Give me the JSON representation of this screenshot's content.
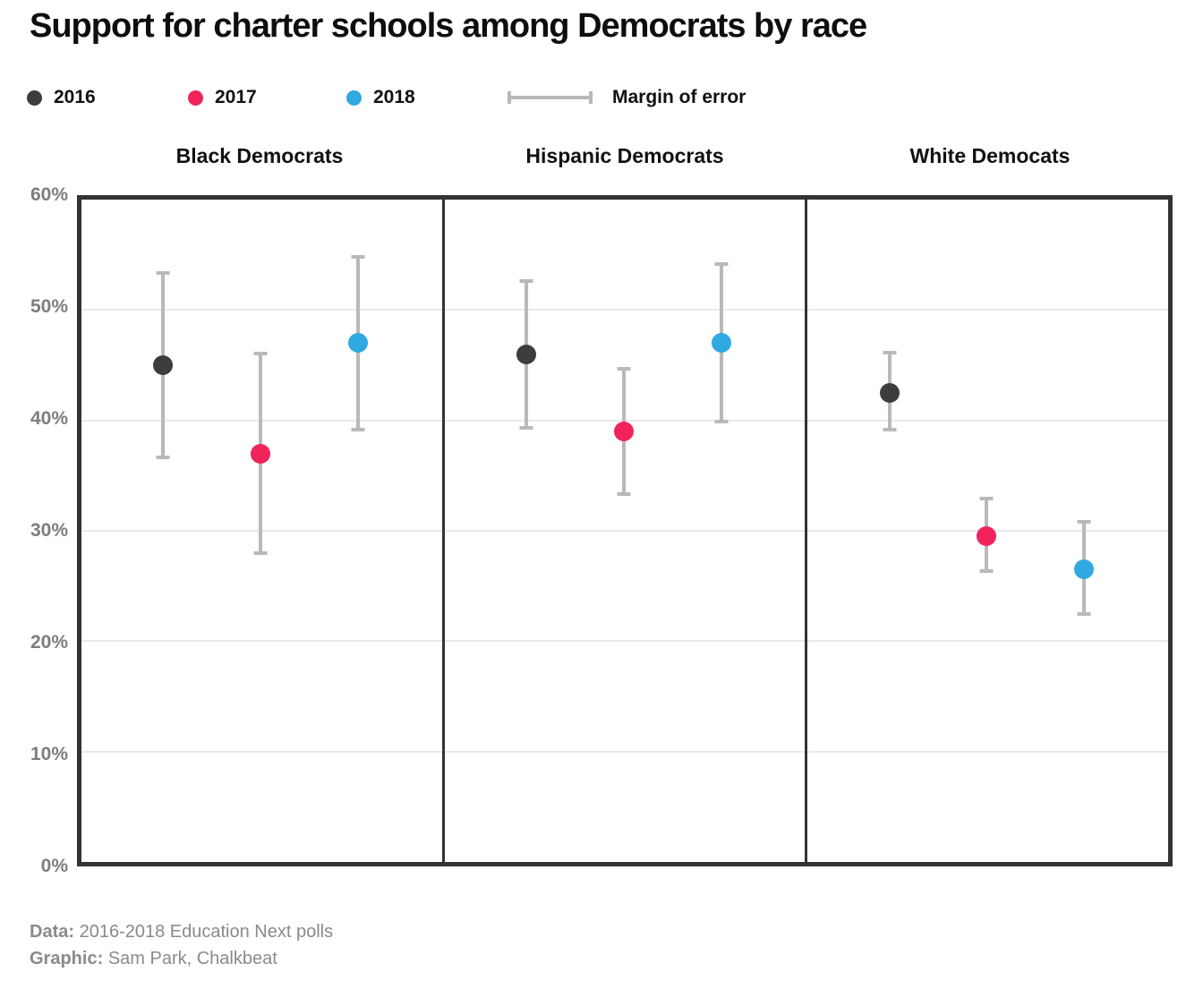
{
  "title": "Support for charter schools among Democrats by race",
  "legend": {
    "items": [
      {
        "label": "2016",
        "color": "#3d3d3d"
      },
      {
        "label": "2017",
        "color": "#f0235a"
      },
      {
        "label": "2018",
        "color": "#30a9e0"
      }
    ],
    "moe_label": "Margin of error"
  },
  "icons": {
    "legend_marker": "filled-circle",
    "moe_marker": "horizontal-error-bar-with-end-caps"
  },
  "colors": {
    "error_bar": "#b9b9b9",
    "gridline": "#e9e9e9",
    "plot_border": "#333333",
    "axis_text": "#7d7d7d",
    "footer_text": "#8a8a8a"
  },
  "chart_data": {
    "type": "scatter",
    "title": "Support for charter schools among Democrats by race",
    "xlabel": "",
    "ylabel": "",
    "ylim": [
      0,
      60
    ],
    "grid": "horizontal gridlines every 10%",
    "legend_position": "top",
    "yticks": [
      {
        "label": "60%",
        "value": 60
      },
      {
        "label": "50%",
        "value": 50
      },
      {
        "label": "40%",
        "value": 40
      },
      {
        "label": "30%",
        "value": 30
      },
      {
        "label": "20%",
        "value": 20
      },
      {
        "label": "10%",
        "value": 10
      },
      {
        "label": "0%",
        "value": 0
      }
    ],
    "series_names": [
      "2016",
      "2017",
      "2018"
    ],
    "panels": [
      {
        "title": "Black Democrats",
        "points": [
          {
            "year": "2016",
            "value": 45.0,
            "moe_low": 36.5,
            "moe_high": 53.5
          },
          {
            "year": "2017",
            "value": 37.0,
            "moe_low": 27.8,
            "moe_high": 46.2
          },
          {
            "year": "2018",
            "value": 47.0,
            "moe_low": 39.0,
            "moe_high": 55.0
          }
        ]
      },
      {
        "title": "Hispanic Democrats",
        "points": [
          {
            "year": "2016",
            "value": 46.0,
            "moe_low": 39.2,
            "moe_high": 52.8
          },
          {
            "year": "2017",
            "value": 39.0,
            "moe_low": 33.2,
            "moe_high": 44.8
          },
          {
            "year": "2018",
            "value": 47.0,
            "moe_low": 39.7,
            "moe_high": 54.3
          }
        ]
      },
      {
        "title": "White Democats",
        "points": [
          {
            "year": "2016",
            "value": 42.5,
            "moe_low": 39.0,
            "moe_high": 46.3
          },
          {
            "year": "2017",
            "value": 29.5,
            "moe_low": 26.2,
            "moe_high": 33.1
          },
          {
            "year": "2018",
            "value": 26.5,
            "moe_low": 22.3,
            "moe_high": 31.0
          }
        ]
      }
    ]
  },
  "footer": {
    "data_label": "Data:",
    "data_text": "2016-2018 Education Next polls",
    "graphic_label": "Graphic:",
    "graphic_text": "Sam Park, Chalkbeat"
  }
}
